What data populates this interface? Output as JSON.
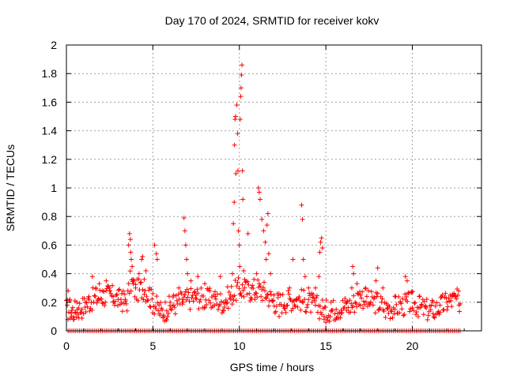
{
  "chart_data": {
    "type": "scatter",
    "title": "Day 170 of 2024, SRMTID for receiver kokv",
    "xlabel": "GPS time / hours",
    "ylabel": "SRMTID / TECUs",
    "xlim": [
      0,
      24
    ],
    "ylim": [
      0,
      2
    ],
    "xticks": [
      0,
      5,
      10,
      15,
      20
    ],
    "xtick_labels": [
      "0",
      "5",
      "10",
      "15",
      "20"
    ],
    "yticks": [
      0,
      0.2,
      0.4,
      0.6,
      0.8,
      1,
      1.2,
      1.4,
      1.6,
      1.8,
      2
    ],
    "ytick_labels": [
      "0",
      "0.2",
      "0.4",
      "0.6",
      "0.8",
      "1",
      "1.2",
      "1.4",
      "1.6",
      "1.8",
      "2"
    ],
    "grid": true,
    "marker": "plus",
    "marker_color": "#ff0000",
    "series": [
      {
        "name": "SRMTID",
        "trend": {
          "x": [
            0.0,
            0.5,
            1.0,
            1.5,
            2.0,
            2.5,
            3.0,
            3.5,
            3.7,
            4.0,
            4.5,
            5.0,
            5.5,
            6.0,
            6.5,
            7.0,
            7.5,
            8.0,
            8.5,
            9.0,
            9.5,
            10.0,
            10.5,
            11.0,
            11.5,
            12.0,
            12.5,
            13.0,
            13.5,
            14.0,
            14.5,
            15.0,
            15.5,
            16.0,
            16.5,
            17.0,
            17.5,
            18.0,
            18.5,
            19.0,
            19.5,
            20.0,
            20.5,
            21.0,
            21.5,
            22.0,
            22.5,
            22.8
          ],
          "y": [
            0.15,
            0.14,
            0.17,
            0.22,
            0.24,
            0.25,
            0.22,
            0.2,
            0.35,
            0.28,
            0.3,
            0.2,
            0.13,
            0.17,
            0.2,
            0.22,
            0.24,
            0.22,
            0.22,
            0.2,
            0.25,
            0.3,
            0.28,
            0.3,
            0.27,
            0.2,
            0.2,
            0.22,
            0.22,
            0.2,
            0.17,
            0.14,
            0.15,
            0.17,
            0.18,
            0.25,
            0.2,
            0.2,
            0.15,
            0.17,
            0.18,
            0.2,
            0.16,
            0.14,
            0.16,
            0.2,
            0.22,
            0.2
          ]
        },
        "points": [
          [
            0.05,
            0.18
          ],
          [
            0.1,
            0.28
          ],
          [
            0.2,
            0.22
          ],
          [
            0.3,
            0.1
          ],
          [
            0.4,
            0.08
          ],
          [
            0.5,
            0.13
          ],
          [
            0.6,
            0.2
          ],
          [
            0.7,
            0.16
          ],
          [
            0.9,
            0.15
          ],
          [
            1.1,
            0.2
          ],
          [
            1.3,
            0.24
          ],
          [
            1.5,
            0.38
          ],
          [
            1.7,
            0.3
          ],
          [
            1.9,
            0.33
          ],
          [
            2.1,
            0.28
          ],
          [
            2.3,
            0.35
          ],
          [
            2.5,
            0.28
          ],
          [
            2.7,
            0.24
          ],
          [
            3.0,
            0.22
          ],
          [
            3.2,
            0.26
          ],
          [
            3.4,
            0.22
          ],
          [
            3.6,
            0.6
          ],
          [
            3.65,
            0.68
          ],
          [
            3.7,
            0.64
          ],
          [
            3.72,
            0.55
          ],
          [
            3.75,
            0.5
          ],
          [
            3.8,
            0.45
          ],
          [
            3.85,
            0.36
          ],
          [
            4.0,
            0.3
          ],
          [
            4.2,
            0.4
          ],
          [
            4.35,
            0.5
          ],
          [
            4.4,
            0.52
          ],
          [
            4.5,
            0.36
          ],
          [
            4.6,
            0.42
          ],
          [
            4.8,
            0.3
          ],
          [
            5.0,
            0.26
          ],
          [
            5.1,
            0.6
          ],
          [
            5.2,
            0.54
          ],
          [
            5.25,
            0.5
          ],
          [
            5.4,
            0.12
          ],
          [
            5.6,
            0.1
          ],
          [
            5.8,
            0.14
          ],
          [
            6.0,
            0.2
          ],
          [
            6.2,
            0.25
          ],
          [
            6.5,
            0.3
          ],
          [
            6.7,
            0.22
          ],
          [
            6.8,
            0.79
          ],
          [
            6.85,
            0.7
          ],
          [
            6.9,
            0.6
          ],
          [
            6.95,
            0.5
          ],
          [
            7.0,
            0.4
          ],
          [
            7.2,
            0.35
          ],
          [
            7.5,
            0.25
          ],
          [
            7.6,
            0.38
          ],
          [
            8.0,
            0.33
          ],
          [
            8.3,
            0.28
          ],
          [
            8.6,
            0.24
          ],
          [
            8.9,
            0.38
          ],
          [
            9.1,
            0.14
          ],
          [
            9.3,
            0.2
          ],
          [
            9.5,
            0.22
          ],
          [
            9.6,
            0.4
          ],
          [
            9.65,
            0.75
          ],
          [
            9.7,
            0.9
          ],
          [
            9.72,
            1.3
          ],
          [
            9.75,
            1.48
          ],
          [
            9.78,
            1.5
          ],
          [
            9.8,
            1.1
          ],
          [
            9.85,
            1.58
          ],
          [
            9.9,
            1.38
          ],
          [
            9.92,
            1.12
          ],
          [
            9.95,
            0.7
          ],
          [
            10.0,
            0.6
          ],
          [
            10.02,
            0.45
          ],
          [
            10.05,
            1.48
          ],
          [
            10.08,
            1.64
          ],
          [
            10.1,
            1.7
          ],
          [
            10.12,
            1.79
          ],
          [
            10.15,
            1.86
          ],
          [
            10.18,
            1.12
          ],
          [
            10.2,
            0.92
          ],
          [
            10.25,
            0.42
          ],
          [
            10.3,
            0.36
          ],
          [
            10.5,
            0.68
          ],
          [
            10.7,
            0.3
          ],
          [
            10.9,
            0.22
          ],
          [
            11.0,
            0.4
          ],
          [
            11.1,
            1.0
          ],
          [
            11.15,
            0.97
          ],
          [
            11.2,
            0.92
          ],
          [
            11.3,
            0.78
          ],
          [
            11.4,
            0.7
          ],
          [
            11.5,
            0.62
          ],
          [
            11.55,
            0.5
          ],
          [
            11.6,
            0.74
          ],
          [
            11.65,
            0.82
          ],
          [
            11.7,
            0.54
          ],
          [
            11.8,
            0.4
          ],
          [
            12.0,
            0.25
          ],
          [
            12.3,
            0.1
          ],
          [
            12.6,
            0.18
          ],
          [
            12.9,
            0.3
          ],
          [
            13.1,
            0.5
          ],
          [
            13.3,
            0.22
          ],
          [
            13.6,
            0.88
          ],
          [
            13.65,
            0.78
          ],
          [
            13.7,
            0.5
          ],
          [
            13.8,
            0.38
          ],
          [
            14.0,
            0.3
          ],
          [
            14.2,
            0.2
          ],
          [
            14.4,
            0.3
          ],
          [
            14.6,
            0.38
          ],
          [
            14.65,
            0.55
          ],
          [
            14.7,
            0.62
          ],
          [
            14.75,
            0.65
          ],
          [
            14.8,
            0.58
          ],
          [
            14.9,
            0.1
          ],
          [
            15.0,
            0.06
          ],
          [
            15.3,
            0.2
          ],
          [
            15.6,
            0.15
          ],
          [
            15.9,
            0.12
          ],
          [
            16.2,
            0.2
          ],
          [
            16.5,
            0.3
          ],
          [
            16.55,
            0.45
          ],
          [
            16.6,
            0.4
          ],
          [
            16.8,
            0.33
          ],
          [
            17.0,
            0.25
          ],
          [
            17.3,
            0.3
          ],
          [
            17.6,
            0.2
          ],
          [
            17.9,
            0.35
          ],
          [
            18.0,
            0.44
          ],
          [
            18.3,
            0.3
          ],
          [
            18.6,
            0.18
          ],
          [
            19.0,
            0.15
          ],
          [
            19.3,
            0.2
          ],
          [
            19.6,
            0.38
          ],
          [
            19.7,
            0.35
          ],
          [
            20.0,
            0.16
          ],
          [
            20.4,
            0.24
          ],
          [
            20.8,
            0.16
          ],
          [
            21.2,
            0.12
          ],
          [
            21.6,
            0.18
          ],
          [
            22.0,
            0.2
          ],
          [
            22.3,
            0.24
          ],
          [
            22.5,
            0.24
          ],
          [
            22.7,
            0.18
          ]
        ],
        "zero_axis_points": true
      }
    ]
  }
}
